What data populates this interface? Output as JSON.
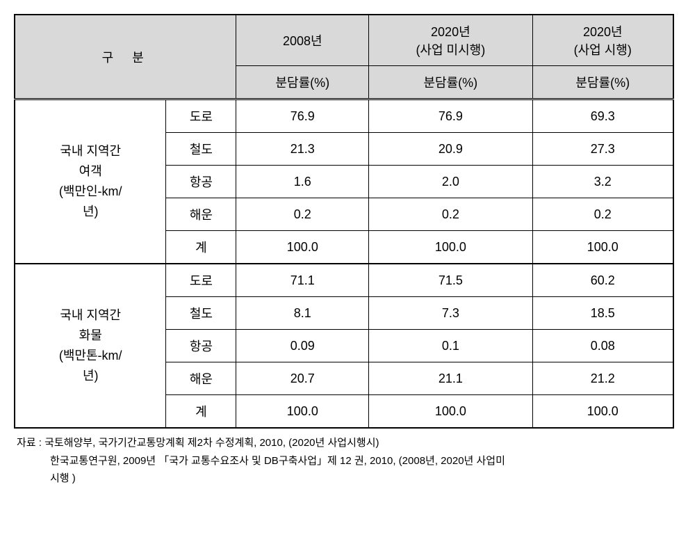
{
  "table": {
    "header": {
      "classification": "구분",
      "col1_top": "2008년",
      "col2_top": "2020년",
      "col2_sub": "(사업 미시행)",
      "col3_top": "2020년",
      "col3_sub": "(사업 시행)",
      "rate_label": "분담률(%)"
    },
    "group1": {
      "label_line1": "국내 지역간",
      "label_line2": "여객",
      "label_line3": "(백만인-km/",
      "label_line4": "년)",
      "rows": [
        {
          "mode": "도로",
          "c1": "76.9",
          "c2": "76.9",
          "c3": "69.3"
        },
        {
          "mode": "철도",
          "c1": "21.3",
          "c2": "20.9",
          "c3": "27.3"
        },
        {
          "mode": "항공",
          "c1": "1.6",
          "c2": "2.0",
          "c3": "3.2"
        },
        {
          "mode": "해운",
          "c1": "0.2",
          "c2": "0.2",
          "c3": "0.2"
        },
        {
          "mode": "계",
          "c1": "100.0",
          "c2": "100.0",
          "c3": "100.0"
        }
      ]
    },
    "group2": {
      "label_line1": "국내 지역간",
      "label_line2": "화물",
      "label_line3": "(백만톤-km/",
      "label_line4": "년)",
      "rows": [
        {
          "mode": "도로",
          "c1": "71.1",
          "c2": "71.5",
          "c3": "60.2"
        },
        {
          "mode": "철도",
          "c1": "8.1",
          "c2": "7.3",
          "c3": "18.5"
        },
        {
          "mode": "항공",
          "c1": "0.09",
          "c2": "0.1",
          "c3": "0.08"
        },
        {
          "mode": "해운",
          "c1": "20.7",
          "c2": "21.1",
          "c3": "21.2"
        },
        {
          "mode": "계",
          "c1": "100.0",
          "c2": "100.0",
          "c3": "100.0"
        }
      ]
    }
  },
  "footnote": {
    "line1": "자료 : 국토해양부, 국가기간교통망계획 제2차 수정계획, 2010, (2020년 사업시행시)",
    "line2": "한국교통연구원, 2009년 「국가 교통수요조사 및 DB구축사업」제 12 권, 2010, (2008년,  2020년 사업미",
    "line3": "시행 )"
  },
  "styles": {
    "header_bg": "#d9d9d9",
    "border_color": "#000000",
    "bg_color": "#ffffff",
    "font_size_cell": 18,
    "font_size_footnote": 15
  }
}
